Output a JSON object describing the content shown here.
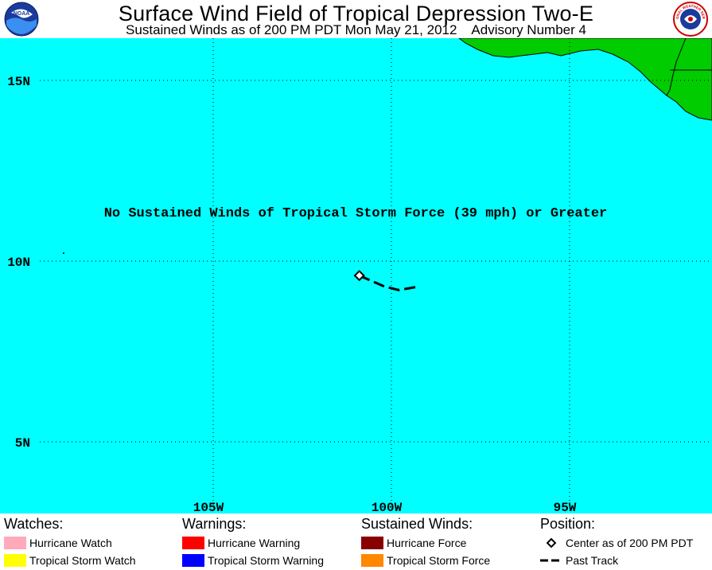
{
  "header": {
    "title": "Surface Wind Field of Tropical Depression Two-E",
    "subtitle": "Sustained Winds as of 200 PM PDT Mon May 21, 2012    Advisory Number 4",
    "left_logo": "noaa-logo",
    "right_logo": "national-weather-service-logo",
    "right_logo_text": "NATIONAL WEATHER SERVICE"
  },
  "map": {
    "ocean_color": "#00FFFF",
    "land_color": "#00CC00",
    "notice": "No Sustained Winds of Tropical Storm Force (39 mph) or Greater",
    "lat_labels": [
      {
        "label": "15N",
        "lat": 15
      },
      {
        "label": "10N",
        "lat": 10
      },
      {
        "label": "5N",
        "lat": 5
      }
    ],
    "lon_labels": [
      {
        "label": "105W",
        "lon": -105
      },
      {
        "label": "100W",
        "lon": -100
      },
      {
        "label": "95W",
        "lon": -95
      }
    ],
    "center": {
      "lat": 9.6,
      "lon": -100.9
    },
    "past_track": [
      {
        "lat": 9.6,
        "lon": -100.9
      },
      {
        "lat": 9.3,
        "lon": -100.2
      },
      {
        "lat": 9.2,
        "lon": -99.8
      },
      {
        "lat": 9.3,
        "lon": -99.2
      }
    ]
  },
  "legend": {
    "watches": {
      "heading": "Watches:",
      "items": [
        {
          "label": "Hurricane Watch",
          "color": "#FFAABB"
        },
        {
          "label": "Tropical Storm Watch",
          "color": "#FFFF00"
        }
      ]
    },
    "warnings": {
      "heading": "Warnings:",
      "items": [
        {
          "label": "Hurricane Warning",
          "color": "#FF0000"
        },
        {
          "label": "Tropical Storm Warning",
          "color": "#0000FF"
        }
      ]
    },
    "sustained_winds": {
      "heading": "Sustained Winds:",
      "items": [
        {
          "label": "Hurricane Force",
          "color": "#880000"
        },
        {
          "label": "Tropical Storm Force",
          "color": "#FF8800"
        }
      ]
    },
    "position": {
      "heading": "Position:",
      "center_label": "Center as of 200 PM PDT",
      "track_label": "Past Track"
    }
  }
}
